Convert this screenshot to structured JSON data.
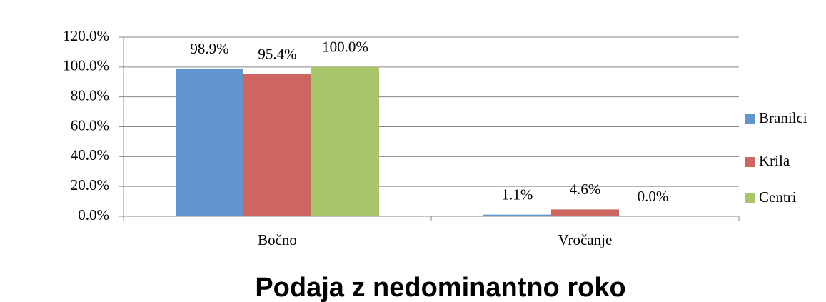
{
  "chart_data": {
    "type": "bar",
    "title": "Podaja z nedominantno roko",
    "categories": [
      "Bočno",
      "Vročanje"
    ],
    "series": [
      {
        "name": "Branilci",
        "color": "#6096cd",
        "values": [
          98.9,
          1.1
        ],
        "value_labels": [
          "98.9%",
          "1.1%"
        ]
      },
      {
        "name": "Krila",
        "color": "#cd6661",
        "values": [
          95.4,
          4.6
        ],
        "value_labels": [
          "95.4%",
          "4.6%"
        ]
      },
      {
        "name": "Centri",
        "color": "#a9c56a",
        "values": [
          100.0,
          0.0
        ],
        "value_labels": [
          "100.0%",
          "0.0%"
        ]
      }
    ],
    "ylim": [
      0,
      120
    ],
    "yticks": [
      {
        "value": 0,
        "label": "0.0%"
      },
      {
        "value": 20,
        "label": "20.0%"
      },
      {
        "value": 40,
        "label": "40.0%"
      },
      {
        "value": 60,
        "label": "60.0%"
      },
      {
        "value": 80,
        "label": "80.0%"
      },
      {
        "value": 100,
        "label": "100.0%"
      },
      {
        "value": 120,
        "label": "120.0%"
      }
    ],
    "grid": true,
    "legend": "right"
  }
}
